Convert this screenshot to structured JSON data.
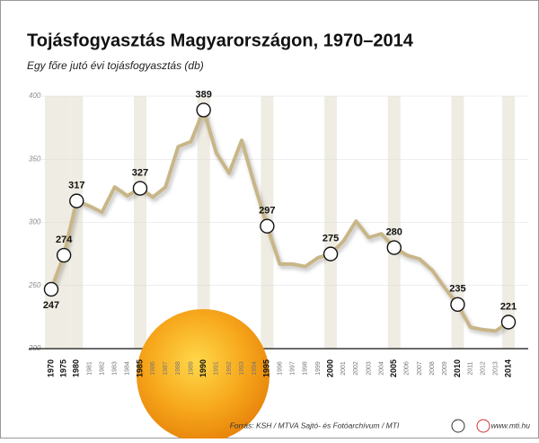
{
  "chart_data": {
    "type": "line",
    "title": "Tojásfogyasztás Magyarországon, 1970–2014",
    "subtitle": "Egy főre jutó évi tojásfogyasztás (db)",
    "source": "Forrás: KSH / MTVA Sajtó- és Fotóarchívum / MTI",
    "website": "www.mti.hu",
    "categories": [
      "1970",
      "1975",
      "1980",
      "1981",
      "1982",
      "1983",
      "1984",
      "1985",
      "1986",
      "1987",
      "1988",
      "1989",
      "1990",
      "1991",
      "1992",
      "1993",
      "1994",
      "1995",
      "1996",
      "1997",
      "1998",
      "1999",
      "2000",
      "2001",
      "2002",
      "2003",
      "2004",
      "2005",
      "2006",
      "2007",
      "2008",
      "2009",
      "2010",
      "2011",
      "2012",
      "2013",
      "2014"
    ],
    "series": [
      {
        "name": "Egy főre jutó évi tojásfogyasztás",
        "color": "#c8b688",
        "values": [
          247,
          274,
          317,
          313,
          308,
          328,
          321,
          327,
          320,
          328,
          360,
          364,
          389,
          355,
          339,
          365,
          330,
          297,
          267,
          267,
          265,
          272,
          275,
          285,
          301,
          288,
          291,
          280,
          274,
          271,
          262,
          248,
          235,
          217,
          215,
          214,
          221
        ],
        "value_labels": [
          "247",
          "274",
          "317",
          null,
          null,
          null,
          null,
          "327",
          null,
          null,
          null,
          null,
          "389",
          null,
          null,
          null,
          null,
          "297",
          null,
          null,
          null,
          null,
          "275",
          null,
          null,
          null,
          null,
          "280",
          null,
          null,
          null,
          null,
          "235",
          null,
          null,
          null,
          "221"
        ]
      }
    ],
    "ylim": [
      200,
      400
    ],
    "yticks": [
      200,
      250,
      300,
      350,
      400
    ],
    "grid": true
  }
}
